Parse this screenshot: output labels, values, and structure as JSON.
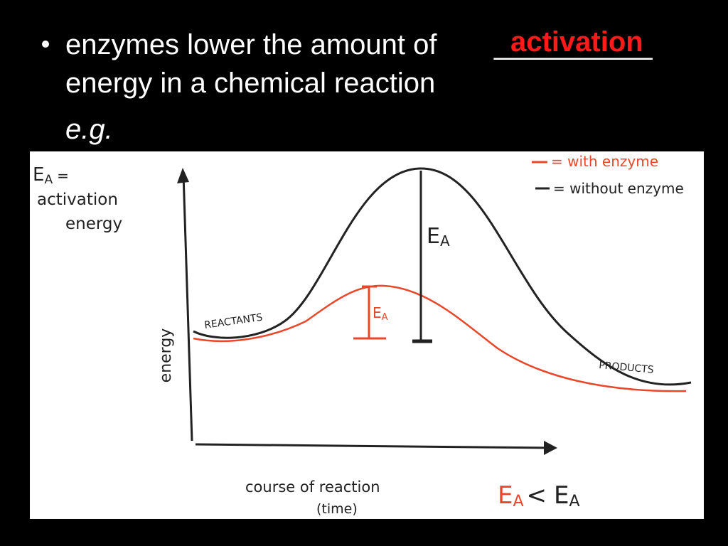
{
  "slide": {
    "bullet": {
      "text_before": "enzymes lower the amount of",
      "blank": "__________",
      "answer": "activation",
      "line2": "energy in a chemical reaction"
    },
    "example": "e.g."
  },
  "diagram": {
    "definition": {
      "symbol": "E",
      "subscript": "A",
      "equals": "=",
      "line1": "activation",
      "line2": "energy"
    },
    "legend": [
      {
        "label": "= with enzyme"
      },
      {
        "label": "= without enzyme"
      }
    ],
    "ea_without": {
      "symbol": "E",
      "subscript": "A"
    },
    "ea_with": {
      "symbol": "E",
      "subscript": "A"
    },
    "reactants": "REACTANTS",
    "products": "PRODUCTS",
    "y_axis": "energy",
    "x_axis": {
      "line1": "course of reaction",
      "line2": "(time)"
    },
    "comparison": {
      "left_symbol": "E",
      "left_subscript": "A",
      "sign": "<",
      "right_symbol": "E",
      "right_subscript": "A"
    }
  }
}
